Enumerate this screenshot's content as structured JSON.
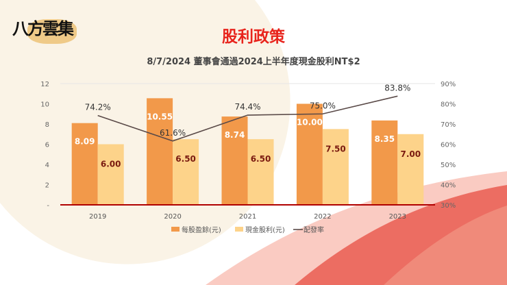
{
  "slide": {
    "title": "股利政策",
    "subtitle": "8/7/2024 董事會通過2024上半年度現金股利NT$2",
    "logo_text": "八方雲集"
  },
  "colors": {
    "eps": "#f2994a",
    "dividend": "#fdd38a",
    "payout": "#5a4a48",
    "title": "#e8241c",
    "baseline": "#b00000"
  },
  "chart_data": {
    "type": "bar+line",
    "categories": [
      "2019",
      "2020",
      "2021",
      "2022",
      "2023"
    ],
    "series": [
      {
        "name": "每股盈餘(元)",
        "type": "bar",
        "axis": "left",
        "values": [
          8.09,
          10.55,
          8.74,
          10.0,
          8.35
        ],
        "labels": [
          "8.09",
          "10.55",
          "8.74",
          "10.00",
          "8.35"
        ]
      },
      {
        "name": "現金股利(元)",
        "type": "bar",
        "axis": "left",
        "values": [
          6.0,
          6.5,
          6.5,
          7.5,
          7.0
        ],
        "labels": [
          "6.00",
          "6.50",
          "6.50",
          "7.50",
          "7.00"
        ]
      },
      {
        "name": "配發率",
        "type": "line",
        "axis": "right",
        "values": [
          74.2,
          61.6,
          74.4,
          75.0,
          83.8
        ],
        "labels": [
          "74.2%",
          "61.6%",
          "74.4%",
          "75.0%",
          "83.8%"
        ]
      }
    ],
    "left_axis": {
      "ylim": [
        0,
        12
      ],
      "ticks": [
        "-",
        "2",
        "4",
        "6",
        "8",
        "10",
        "12"
      ]
    },
    "right_axis": {
      "ylim": [
        30,
        90
      ],
      "ticks": [
        "30%",
        "40%",
        "50%",
        "60%",
        "70%",
        "80%",
        "90%"
      ]
    },
    "legend": "bottom",
    "grid": false
  }
}
